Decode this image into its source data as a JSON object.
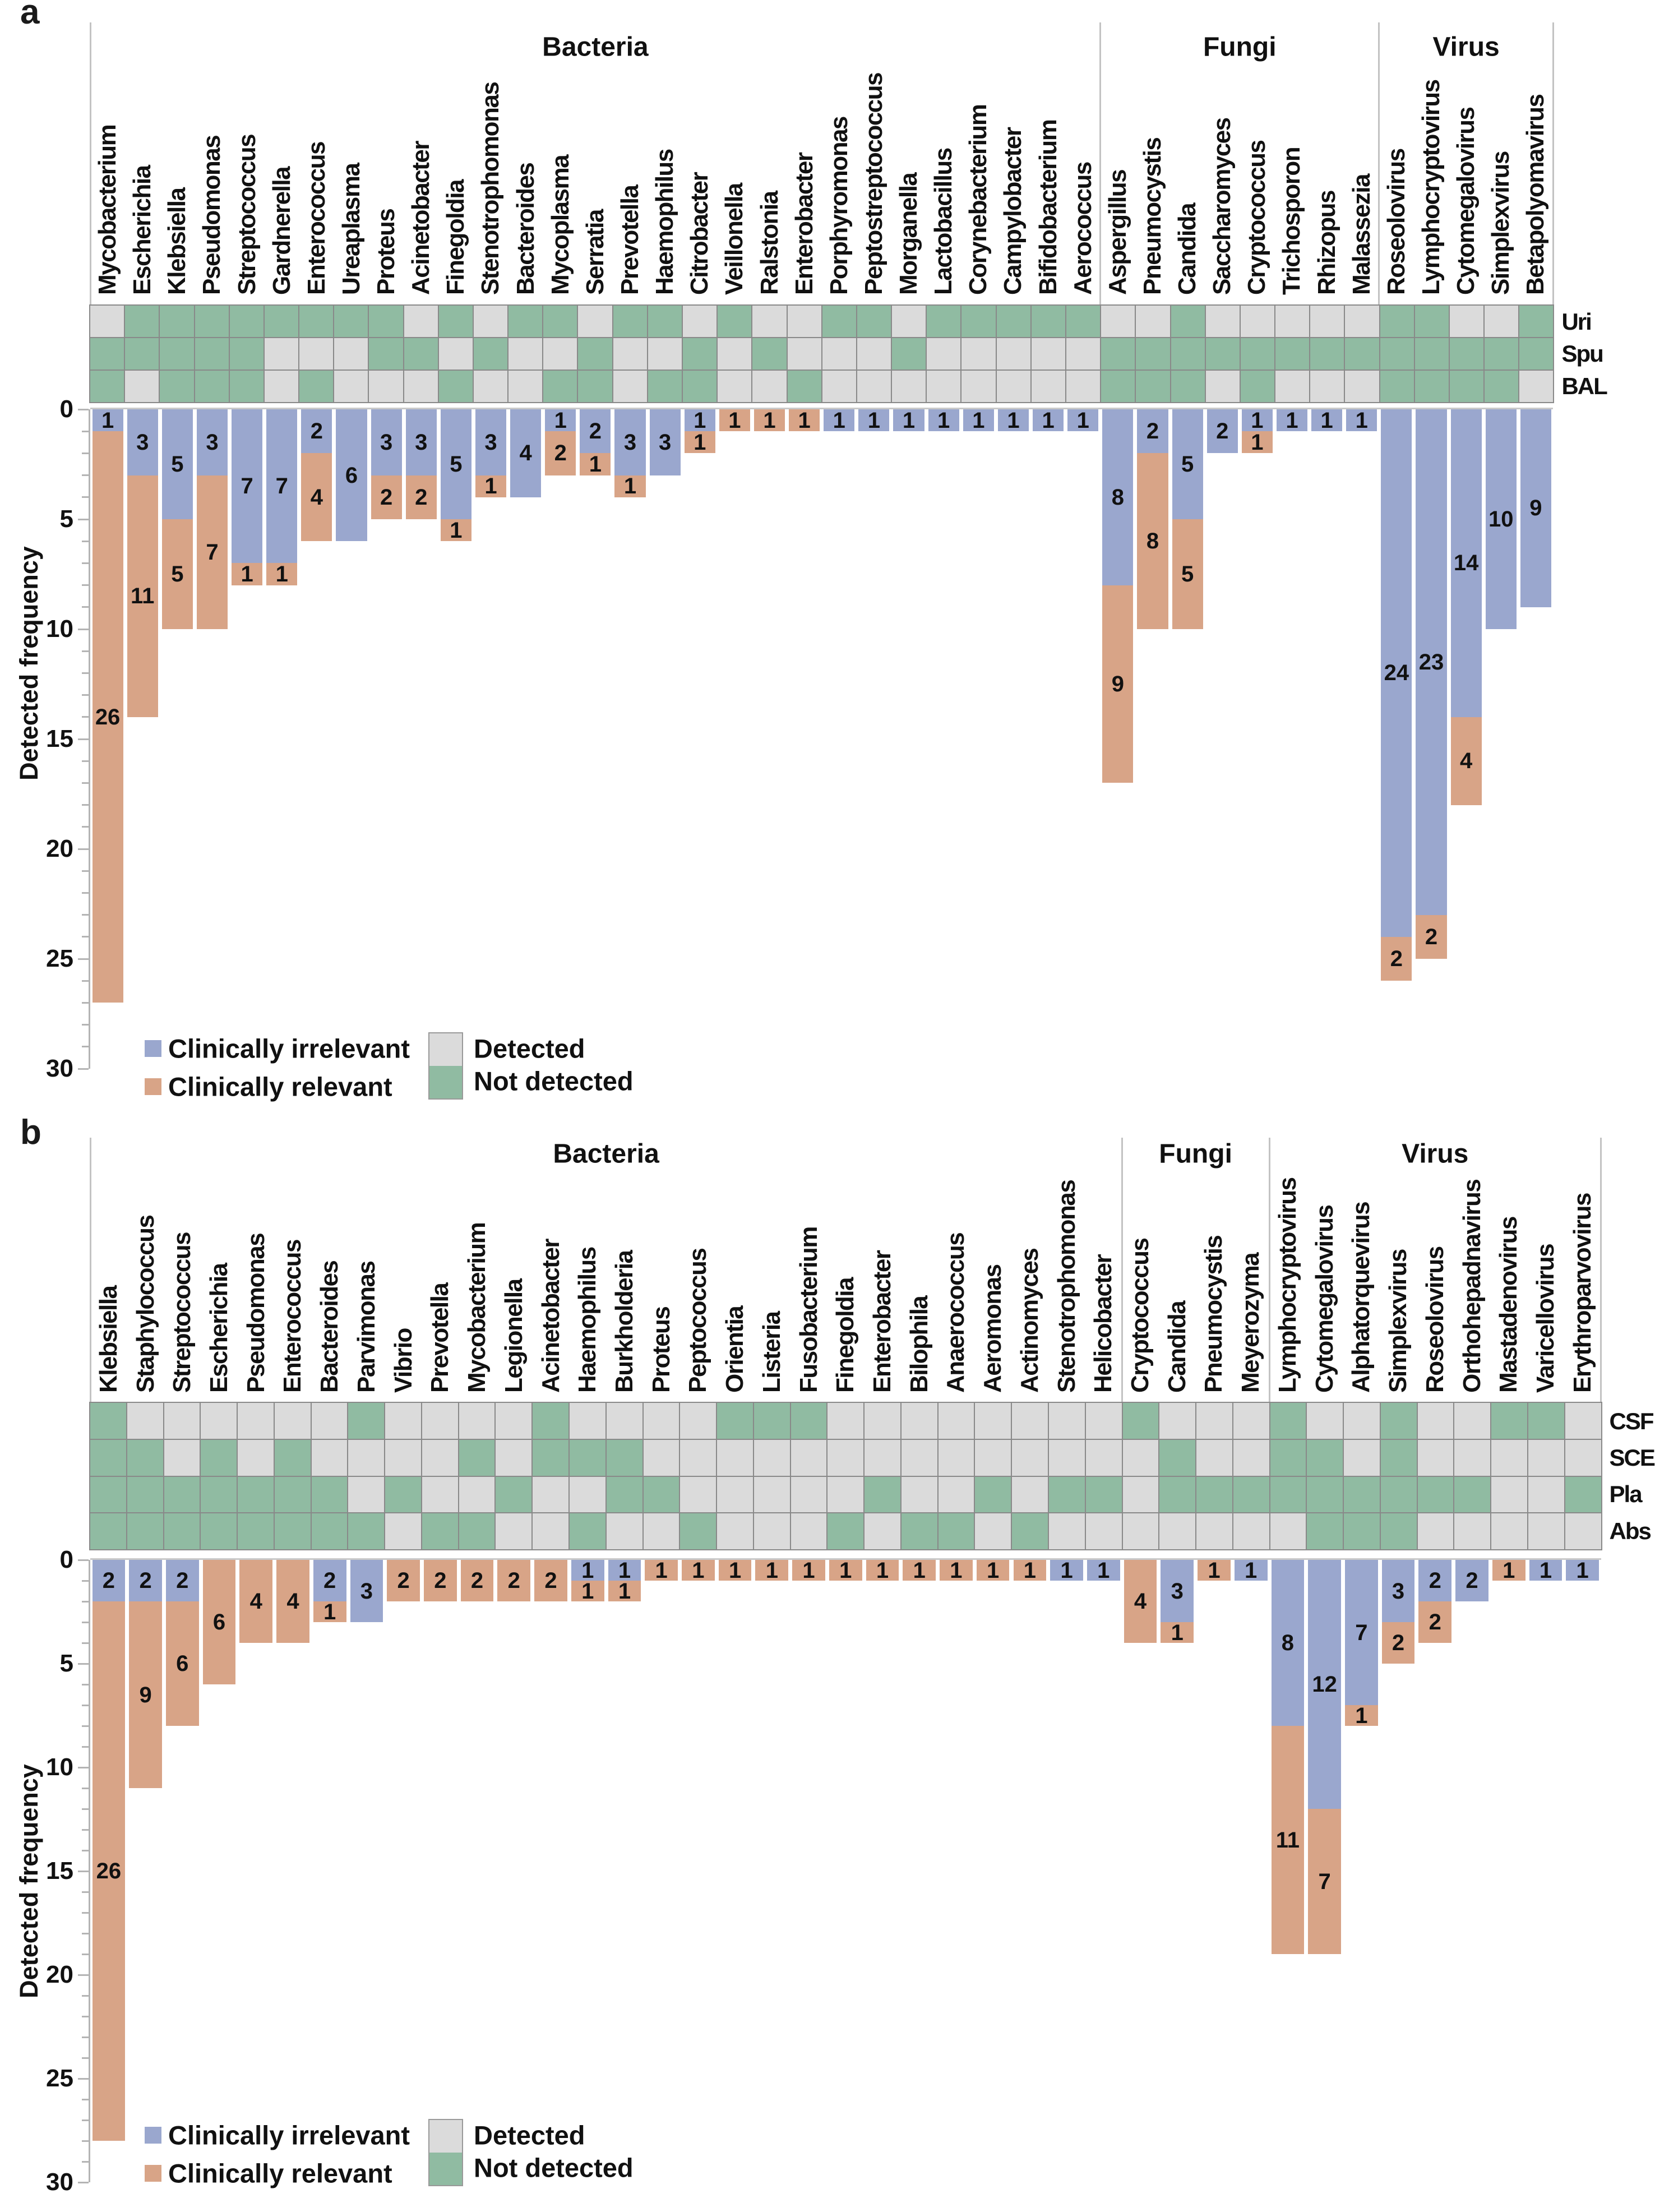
{
  "figure": {
    "ylabel": "Detected frequency",
    "yticks": [
      0,
      5,
      10,
      15,
      20,
      25,
      30
    ],
    "legend": {
      "irrelevant": "Clinically irrelevant",
      "relevant": "Clinically relevant",
      "detected": "Detected",
      "not_detected": "Not detected"
    },
    "colors": {
      "clinically_irrelevant_blue": "#9aa7ce",
      "clinically_relevant_orange": "#d8a487",
      "detected_gray": "#dbdbdb",
      "not_detected_green": "#90bba2",
      "cell_border_gray": "#898989",
      "axis_gray": "#b4b4b4"
    }
  },
  "chart_data": [
    {
      "panel": "a",
      "type": "bar",
      "subtype": "stacked-downward-bar-with-detection-heatmap",
      "ylabel": "Detected frequency",
      "ylim": [
        0,
        30
      ],
      "legend_position": "bottom-left",
      "grid": false,
      "groups": [
        {
          "name": "Bacteria",
          "count": 29
        },
        {
          "name": "Fungi",
          "count": 8
        },
        {
          "name": "Virus",
          "count": 5
        }
      ],
      "sample_rows": [
        "Uri",
        "Spu",
        "BAL"
      ],
      "categories": [
        "Mycobacterium",
        "Escherichia",
        "Klebsiella",
        "Pseudomonas",
        "Streptococcus",
        "Gardnerella",
        "Enterococcus",
        "Ureaplasma",
        "Proteus",
        "Acinetobacter",
        "Finegoldia",
        "Stenotrophomonas",
        "Bacteroides",
        "Mycoplasma",
        "Serratia",
        "Prevotella",
        "Haemophilus",
        "Citrobacter",
        "Veillonella",
        "Ralstonia",
        "Enterobacter",
        "Porphyromonas",
        "Peptostreptococcus",
        "Morganella",
        "Lactobacillus",
        "Corynebacterium",
        "Campylobacter",
        "Bifidobacterium",
        "Aerococcus",
        "Aspergillus",
        "Pneumocystis",
        "Candida",
        "Saccharomyces",
        "Cryptococcus",
        "Trichosporon",
        "Rhizopus",
        "Malassezia",
        "Roseolovirus",
        "Lymphocryptovirus",
        "Cytomegalovirus",
        "Simplexvirus",
        "Betapolyomavirus"
      ],
      "series": [
        {
          "name": "Clinically irrelevant",
          "values": [
            1,
            3,
            5,
            3,
            7,
            7,
            2,
            6,
            3,
            3,
            5,
            3,
            4,
            1,
            2,
            3,
            3,
            1,
            0,
            0,
            0,
            1,
            1,
            1,
            1,
            1,
            1,
            1,
            1,
            8,
            2,
            5,
            2,
            1,
            1,
            1,
            1,
            24,
            23,
            14,
            10,
            9
          ]
        },
        {
          "name": "Clinically relevant",
          "values": [
            26,
            11,
            5,
            7,
            1,
            1,
            4,
            0,
            2,
            2,
            1,
            1,
            0,
            2,
            1,
            1,
            0,
            1,
            1,
            1,
            1,
            0,
            0,
            0,
            0,
            0,
            0,
            0,
            0,
            9,
            8,
            5,
            0,
            1,
            0,
            0,
            0,
            2,
            2,
            4,
            0,
            0
          ]
        }
      ],
      "heatmap_detected": {
        "Uri": [
          1,
          0,
          0,
          0,
          0,
          0,
          0,
          0,
          0,
          1,
          0,
          1,
          0,
          0,
          1,
          0,
          0,
          1,
          0,
          1,
          1,
          0,
          0,
          1,
          0,
          0,
          0,
          0,
          0,
          1,
          1,
          0,
          1,
          1,
          1,
          1,
          1,
          0,
          0,
          1,
          1,
          0
        ],
        "Spu": [
          0,
          0,
          0,
          0,
          0,
          1,
          1,
          1,
          0,
          0,
          1,
          0,
          1,
          1,
          0,
          1,
          1,
          0,
          1,
          0,
          1,
          1,
          1,
          0,
          1,
          1,
          1,
          1,
          1,
          0,
          0,
          0,
          0,
          0,
          0,
          0,
          0,
          0,
          0,
          0,
          0,
          0
        ],
        "BAL": [
          0,
          1,
          0,
          0,
          0,
          1,
          0,
          1,
          1,
          1,
          0,
          1,
          1,
          0,
          0,
          1,
          0,
          0,
          1,
          1,
          0,
          1,
          1,
          1,
          1,
          1,
          1,
          1,
          1,
          0,
          0,
          0,
          1,
          0,
          1,
          1,
          1,
          0,
          0,
          0,
          0,
          1
        ]
      }
    },
    {
      "panel": "b",
      "type": "bar",
      "subtype": "stacked-downward-bar-with-detection-heatmap",
      "ylabel": "Detected frequency",
      "ylim": [
        0,
        30
      ],
      "legend_position": "bottom-left",
      "grid": false,
      "groups": [
        {
          "name": "Bacteria",
          "count": 28
        },
        {
          "name": "Fungi",
          "count": 4
        },
        {
          "name": "Virus",
          "count": 9
        }
      ],
      "sample_rows": [
        "CSF",
        "SCE",
        "Pla",
        "Abs"
      ],
      "categories": [
        "Klebsiella",
        "Staphylococcus",
        "Streptococcus",
        "Escherichia",
        "Pseudomonas",
        "Enterococcus",
        "Bacteroides",
        "Parvimonas",
        "Vibrio",
        "Prevotella",
        "Mycobacterium",
        "Legionella",
        "Acinetobacter",
        "Haemophilus",
        "Burkholderia",
        "Proteus",
        "Peptococcus",
        "Orientia",
        "Listeria",
        "Fusobacterium",
        "Finegoldia",
        "Enterobacter",
        "Bilophila",
        "Anaerococcus",
        "Aeromonas",
        "Actinomyces",
        "Stenotrophomonas",
        "Helicobacter",
        "Cryptococcus",
        "Candida",
        "Pneumocystis",
        "Meyerozyma",
        "Lymphocryptovirus",
        "Cytomegalovirus",
        "Alphatorquevirus",
        "Simplexvirus",
        "Roseolovirus",
        "Orthohepadnavirus",
        "Mastadenovirus",
        "Varicellovirus",
        "Erythroparvovirus"
      ],
      "series": [
        {
          "name": "Clinically irrelevant",
          "values": [
            2,
            2,
            2,
            0,
            0,
            0,
            2,
            3,
            0,
            0,
            0,
            0,
            0,
            1,
            1,
            0,
            0,
            0,
            0,
            0,
            0,
            0,
            0,
            0,
            0,
            0,
            1,
            1,
            0,
            3,
            0,
            1,
            8,
            12,
            7,
            3,
            2,
            2,
            0,
            1,
            1
          ]
        },
        {
          "name": "Clinically relevant",
          "values": [
            26,
            9,
            6,
            6,
            4,
            4,
            1,
            0,
            2,
            2,
            2,
            2,
            2,
            1,
            1,
            1,
            1,
            1,
            1,
            1,
            1,
            1,
            1,
            1,
            1,
            1,
            0,
            0,
            4,
            1,
            1,
            0,
            11,
            7,
            1,
            2,
            2,
            0,
            1,
            0,
            0
          ]
        }
      ],
      "heatmap_detected": {
        "CSF": [
          0,
          1,
          1,
          1,
          1,
          1,
          1,
          0,
          1,
          1,
          1,
          1,
          0,
          1,
          1,
          1,
          1,
          0,
          0,
          0,
          1,
          1,
          1,
          1,
          1,
          1,
          1,
          1,
          0,
          1,
          1,
          1,
          0,
          1,
          1,
          0,
          1,
          1,
          0,
          0,
          1
        ],
        "SCE": [
          0,
          0,
          1,
          0,
          1,
          0,
          1,
          1,
          1,
          1,
          0,
          1,
          0,
          0,
          0,
          1,
          1,
          1,
          1,
          1,
          1,
          1,
          1,
          1,
          1,
          1,
          1,
          1,
          1,
          0,
          1,
          1,
          0,
          0,
          1,
          0,
          1,
          1,
          1,
          1,
          1
        ],
        "Pla": [
          0,
          0,
          0,
          0,
          0,
          0,
          0,
          1,
          0,
          1,
          1,
          0,
          1,
          1,
          0,
          0,
          1,
          1,
          1,
          1,
          1,
          0,
          1,
          1,
          0,
          1,
          0,
          0,
          1,
          0,
          0,
          0,
          0,
          0,
          0,
          0,
          0,
          0,
          1,
          1,
          0
        ],
        "Abs": [
          0,
          0,
          0,
          0,
          0,
          0,
          0,
          0,
          1,
          0,
          0,
          1,
          1,
          0,
          1,
          1,
          0,
          1,
          1,
          1,
          0,
          1,
          0,
          0,
          1,
          0,
          1,
          1,
          1,
          1,
          1,
          1,
          1,
          0,
          0,
          0,
          1,
          1,
          1,
          1,
          1
        ]
      }
    }
  ]
}
